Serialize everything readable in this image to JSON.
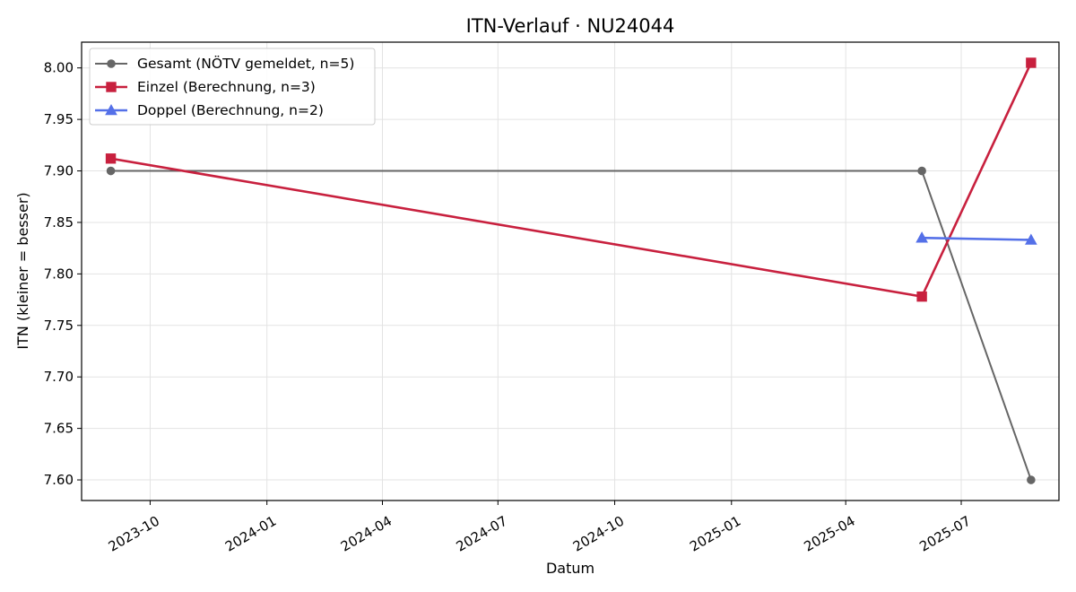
{
  "chart_data": {
    "type": "line",
    "title": "ITN-Verlauf · NU24044",
    "xlabel": "Datum",
    "ylabel": "ITN  (kleiner = besser)",
    "x_axis_type": "date",
    "xlim": [
      "2023-08-08",
      "2025-09-16"
    ],
    "ylim": [
      7.58,
      8.025
    ],
    "x_ticks": [
      "2023-10-01",
      "2024-01-01",
      "2024-04-01",
      "2024-07-01",
      "2024-10-01",
      "2025-01-01",
      "2025-04-01",
      "2025-07-01"
    ],
    "x_tick_labels": [
      "2023-10",
      "2024-01",
      "2024-04",
      "2024-07",
      "2024-10",
      "2025-01",
      "2025-04",
      "2025-07"
    ],
    "y_ticks": [
      7.6,
      7.65,
      7.7,
      7.75,
      7.8,
      7.85,
      7.9,
      7.95,
      8.0
    ],
    "y_tick_labels": [
      "7.60",
      "7.65",
      "7.70",
      "7.75",
      "7.80",
      "7.85",
      "7.90",
      "7.95",
      "8.00"
    ],
    "grid": true,
    "legend_position": "top-left",
    "series": [
      {
        "name": "Gesamt (NÖTV gemeldet, n=5)",
        "color": "#666666",
        "marker": "circle",
        "points": [
          {
            "x": "2023-08-31",
            "y": 7.9
          },
          {
            "x": "2025-05-31",
            "y": 7.9
          },
          {
            "x": "2025-08-25",
            "y": 7.6
          }
        ]
      },
      {
        "name": "Einzel (Berechnung, n=3)",
        "color": "#c8203e",
        "marker": "square",
        "points": [
          {
            "x": "2023-08-31",
            "y": 7.912
          },
          {
            "x": "2025-05-31",
            "y": 7.778
          },
          {
            "x": "2025-08-25",
            "y": 8.005
          }
        ]
      },
      {
        "name": "Doppel (Berechnung, n=2)",
        "color": "#5470e8",
        "marker": "triangle",
        "points": [
          {
            "x": "2025-05-31",
            "y": 7.835
          },
          {
            "x": "2025-08-25",
            "y": 7.833
          }
        ]
      }
    ]
  }
}
